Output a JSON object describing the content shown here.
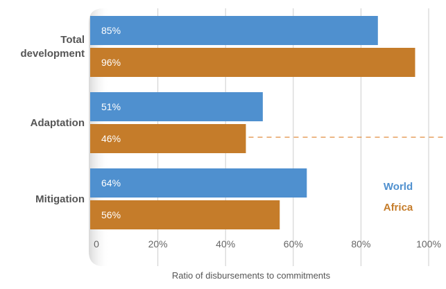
{
  "chart_data": {
    "type": "bar",
    "orientation": "horizontal",
    "categories": [
      "Total development",
      "Adaptation",
      "Mitigation"
    ],
    "category_label_lines": [
      [
        "Total",
        "development"
      ],
      [
        "Adaptation"
      ],
      [
        "Mitigation"
      ]
    ],
    "series": [
      {
        "name": "World",
        "values": [
          85,
          51,
          64
        ],
        "labels": [
          "85%",
          "51%",
          "64%"
        ],
        "color": "#4f90cf"
      },
      {
        "name": "Africa",
        "values": [
          96,
          46,
          56
        ],
        "labels": [
          "96%",
          "46%",
          "56%"
        ],
        "color": "#c57c2a"
      }
    ],
    "xlim": [
      0,
      100
    ],
    "xticks": [
      0,
      20,
      40,
      60,
      80,
      100
    ],
    "xtick_labels": [
      "0",
      "20%",
      "40%",
      "60%",
      "80%",
      "100%"
    ],
    "xlabel": "Ratio of disbursements to commitments",
    "ylabel": "",
    "title": "",
    "grid": "vertical",
    "legend_position": "bottom-right",
    "reference_line": {
      "series": "Africa",
      "category": "Adaptation",
      "style": "dashed",
      "color": "#e08a3c"
    },
    "colors": {
      "grid": "#cccccc",
      "axis_panel": "#e4e4e4",
      "category_text": "#555555",
      "tick_text": "#666666",
      "bar_label": "#ffffff"
    }
  }
}
